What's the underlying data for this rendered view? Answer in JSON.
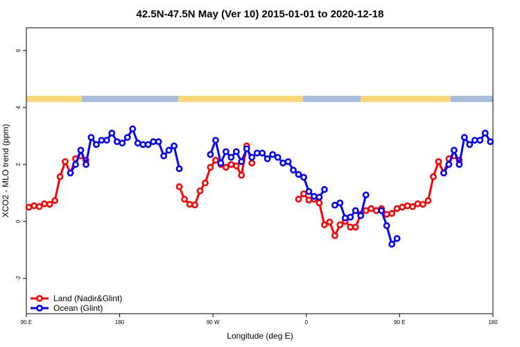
{
  "chart_data": {
    "type": "line",
    "title": "42.5N-47.5N May (Ver 10)   2015-01-01 to 2020-12-18",
    "x_label": "Longitude (deg E)",
    "y_label": "XCO2 - MLO trend (ppm)",
    "xlim": [
      90,
      540
    ],
    "ylim": [
      -3.24,
      6.8
    ],
    "xticks": [
      {
        "value": 90,
        "label": "90 E"
      },
      180,
      {
        "value": 270,
        "label": "90 W"
      },
      {
        "value": 360,
        "label": "0"
      },
      {
        "value": 450,
        "label": "90 E"
      },
      {
        "value": 540,
        "label": "180"
      }
    ],
    "yticks": [
      -2,
      0,
      2,
      4,
      6
    ],
    "legend": "bottom-left",
    "series": [
      {
        "name": "Land (Nadir&Glint)",
        "color": "#ff0000",
        "x": [
          92.5,
          97.5,
          102.5,
          107.5,
          112.5,
          117.5,
          122.5,
          127.5,
          132.5,
          137.5,
          142.5,
          147.5,
          152.5,
          237.5,
          242.5,
          247.5,
          252.5,
          257.5,
          262.5,
          267.5,
          272.5,
          277.5,
          282.5,
          287.5,
          292.5,
          297.5,
          302.5,
          307.5,
          312.5,
          352.5,
          357.5,
          362.5,
          367.5,
          372.5,
          377.5,
          382.5,
          387.5,
          392.5,
          397.5,
          402.5,
          407.5,
          412.5,
          417.5,
          422.5,
          427.5,
          432.5,
          437.5,
          442.5,
          447.5,
          452.5,
          457.5,
          462.5,
          467.5,
          472.5,
          477.5,
          482.5,
          487.5,
          492.5,
          497.5,
          502.5,
          507.5
        ],
        "values": [
          0.5,
          0.55,
          0.52,
          0.62,
          0.6,
          0.73,
          1.57,
          2.1,
          1.7,
          2.2,
          2.3,
          2.15,
          null,
          1.22,
          0.78,
          0.6,
          0.58,
          1.07,
          1.35,
          1.9,
          2.15,
          2.0,
          1.9,
          2.0,
          1.95,
          1.62,
          2.65,
          2.05,
          null,
          0.78,
          0.97,
          0.75,
          0.78,
          0.65,
          -0.12,
          -0.02,
          -0.5,
          -0.12,
          0.0,
          -0.2,
          -0.2,
          0.25,
          0.38,
          0.45,
          0.38,
          0.45,
          0.25,
          0.28,
          0.45,
          0.5,
          0.55,
          0.52,
          0.62,
          0.6,
          0.73,
          1.57,
          2.1,
          1.7,
          2.2,
          2.3,
          2.15
        ]
      },
      {
        "name": "Ocean (Glint)",
        "color": "#0000ff",
        "x": [
          132.5,
          137.5,
          142.5,
          147.5,
          152.5,
          157.5,
          162.5,
          167.5,
          172.5,
          177.5,
          182.5,
          187.5,
          192.5,
          197.5,
          202.5,
          207.5,
          212.5,
          217.5,
          222.5,
          227.5,
          232.5,
          237.5,
          242.5,
          267.5,
          272.5,
          277.5,
          282.5,
          287.5,
          292.5,
          297.5,
          302.5,
          307.5,
          312.5,
          317.5,
          322.5,
          327.5,
          332.5,
          337.5,
          342.5,
          347.5,
          352.5,
          357.5,
          362.5,
          367.5,
          372.5,
          377.5,
          382.5,
          387.5,
          392.5,
          397.5,
          402.5,
          407.5,
          412.5,
          417.5,
          422.5,
          432.5,
          437.5,
          442.5,
          447.5,
          452.5,
          492.5,
          497.5,
          502.5,
          507.5,
          512.5,
          517.5,
          522.5,
          527.5,
          532.5,
          537.5
        ],
        "values": [
          1.7,
          2.0,
          2.5,
          2.0,
          2.95,
          2.7,
          2.85,
          2.85,
          3.1,
          2.8,
          2.75,
          2.95,
          3.25,
          2.75,
          2.7,
          2.7,
          2.8,
          2.8,
          2.3,
          2.5,
          2.65,
          1.85,
          null,
          2.35,
          2.85,
          2.05,
          2.45,
          2.25,
          2.45,
          2.1,
          2.55,
          2.25,
          2.4,
          2.4,
          2.2,
          2.35,
          2.25,
          2.05,
          2.1,
          1.8,
          1.65,
          1.55,
          1.05,
          0.88,
          0.85,
          1.12,
          null,
          0.57,
          0.65,
          0.12,
          0.15,
          0.38,
          0.2,
          0.93,
          null,
          0.38,
          -0.15,
          -0.8,
          -0.6,
          null,
          1.7,
          2.0,
          2.5,
          2.0,
          2.95,
          2.7,
          2.85,
          2.85,
          3.1,
          2.8
        ]
      }
    ]
  }
}
